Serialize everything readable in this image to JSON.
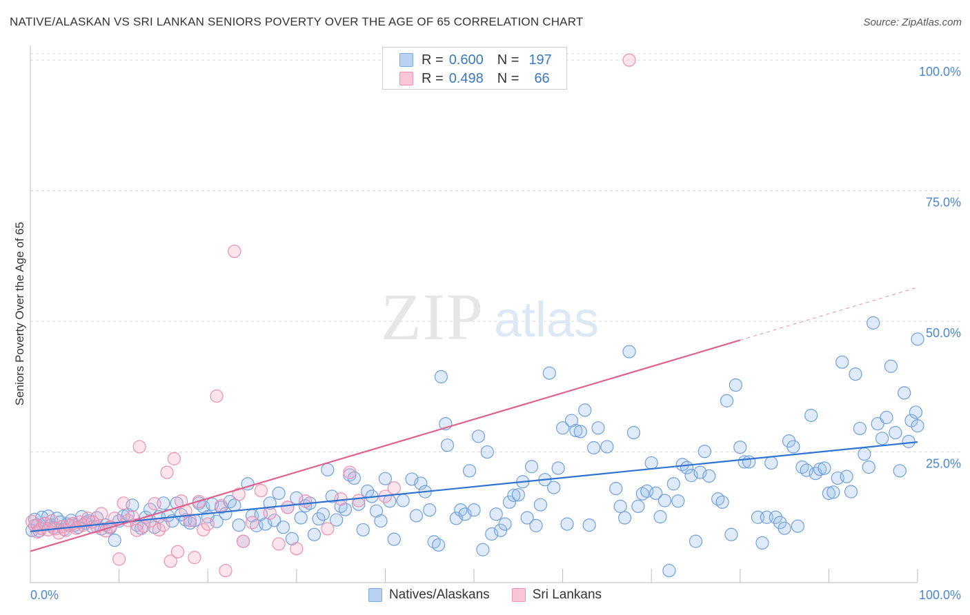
{
  "header": {
    "title": "NATIVE/ALASKAN VS SRI LANKAN SENIORS POVERTY OVER THE AGE OF 65 CORRELATION CHART",
    "source": "Source: ZipAtlas.com"
  },
  "watermark": {
    "zip": "ZIP",
    "atlas": "atlas"
  },
  "legend": {
    "r_label": "R =",
    "n_label": "N =",
    "items": [
      {
        "series": "Natives/Alaskans",
        "r": "0.600",
        "n": "197",
        "color": "#7aaae6",
        "fill": "#b9d2f2"
      },
      {
        "series": "Sri Lankans",
        "r": "0.498",
        "n": "66",
        "color": "#f093b0",
        "fill": "#f8c6d6"
      }
    ]
  },
  "colors": {
    "blue_point_stroke": "#6f9fdc",
    "pink_point_stroke": "#ef8fae",
    "blue_trend": "#2e72d2",
    "pink_trend": "#e0608e",
    "axis_label": "#4a86d0",
    "grid": "#d8d8d8"
  },
  "chart_data": {
    "type": "scatter",
    "title": "NATIVE/ALASKAN VS SRI LANKAN SENIORS POVERTY OVER THE AGE OF 65 CORRELATION CHART",
    "xlabel": "",
    "ylabel": "Seniors Poverty Over the Age of 65",
    "xlim": [
      0,
      100
    ],
    "ylim": [
      0,
      102
    ],
    "x_tick_labels": [
      "0.0%",
      "100.0%"
    ],
    "y_ticks": [
      25,
      50,
      75,
      100
    ],
    "y_tick_labels": [
      "25.0%",
      "50.0%",
      "75.0%",
      "100.0%"
    ],
    "grid": true,
    "legend_position": "top-center",
    "series": [
      {
        "name": "Natives/Alaskans",
        "r": 0.6,
        "n": 197,
        "trend": {
          "x0": 0,
          "y0": 9.8,
          "x1": 100,
          "y1": 26.9
        },
        "points": [
          [
            0.2,
            10.0
          ],
          [
            0.5,
            12.1
          ],
          [
            0.8,
            11.0
          ],
          [
            1.0,
            9.9
          ],
          [
            1.3,
            12.5
          ],
          [
            1.6,
            11.3
          ],
          [
            2.0,
            12.7
          ],
          [
            2.3,
            11.0
          ],
          [
            2.6,
            10.5
          ],
          [
            3.0,
            12.3
          ],
          [
            3.4,
            11.6
          ],
          [
            3.8,
            10.2
          ],
          [
            4.2,
            11.2
          ],
          [
            4.6,
            11.9
          ],
          [
            5.0,
            11.0
          ],
          [
            5.4,
            10.6
          ],
          [
            5.8,
            12.6
          ],
          [
            6.2,
            11.4
          ],
          [
            6.6,
            11.8
          ],
          [
            7.0,
            10.7
          ],
          [
            7.5,
            12.4
          ],
          [
            8.0,
            10.3
          ],
          [
            8.5,
            11.0
          ],
          [
            9.0,
            10.5
          ],
          [
            9.5,
            8.1
          ],
          [
            10.0,
            11.8
          ],
          [
            10.5,
            12.7
          ],
          [
            11.0,
            13.0
          ],
          [
            11.5,
            14.8
          ],
          [
            12.0,
            11.0
          ],
          [
            12.5,
            10.4
          ],
          [
            13.0,
            12.5
          ],
          [
            13.5,
            14.0
          ],
          [
            14.0,
            10.6
          ],
          [
            14.5,
            12.6
          ],
          [
            15.0,
            15.2
          ],
          [
            15.5,
            12.8
          ],
          [
            16.0,
            11.8
          ],
          [
            16.5,
            15.2
          ],
          [
            17.0,
            13.0
          ],
          [
            17.5,
            12.0
          ],
          [
            18.0,
            11.4
          ],
          [
            18.5,
            11.9
          ],
          [
            19.0,
            15.2
          ],
          [
            19.5,
            14.5
          ],
          [
            20.0,
            12.6
          ],
          [
            20.5,
            15.0
          ],
          [
            21.0,
            11.7
          ],
          [
            21.5,
            14.4
          ],
          [
            22.0,
            13.2
          ],
          [
            22.5,
            15.5
          ],
          [
            23.0,
            14.8
          ],
          [
            23.5,
            11.0
          ],
          [
            24.0,
            7.9
          ],
          [
            24.5,
            18.9
          ],
          [
            25.0,
            12.8
          ],
          [
            25.5,
            10.9
          ],
          [
            26.0,
            13.1
          ],
          [
            26.5,
            11.2
          ],
          [
            27.0,
            15.2
          ],
          [
            27.5,
            11.9
          ],
          [
            28.0,
            17.1
          ],
          [
            28.5,
            10.6
          ],
          [
            29.0,
            14.4
          ],
          [
            29.5,
            8.4
          ],
          [
            30.0,
            16.2
          ],
          [
            30.5,
            12.4
          ],
          [
            31.0,
            14.7
          ],
          [
            31.5,
            15.2
          ],
          [
            32.0,
            9.2
          ],
          [
            32.5,
            12.2
          ],
          [
            33.0,
            13.1
          ],
          [
            33.5,
            21.6
          ],
          [
            34.0,
            16.5
          ],
          [
            34.5,
            12.0
          ],
          [
            35.0,
            14.6
          ],
          [
            35.5,
            14.0
          ],
          [
            36.0,
            20.6
          ],
          [
            36.5,
            20.0
          ],
          [
            37.0,
            15.0
          ],
          [
            37.5,
            10.1
          ],
          [
            38.0,
            17.5
          ],
          [
            38.5,
            16.5
          ],
          [
            39.0,
            13.7
          ],
          [
            39.5,
            11.8
          ],
          [
            40.0,
            19.9
          ],
          [
            40.5,
            15.6
          ],
          [
            41.0,
            8.3
          ],
          [
            42.0,
            15.7
          ],
          [
            43.0,
            19.8
          ],
          [
            43.5,
            12.8
          ],
          [
            44.0,
            19.0
          ],
          [
            44.5,
            17.4
          ],
          [
            45.0,
            13.9
          ],
          [
            45.5,
            7.8
          ],
          [
            46.0,
            7.2
          ],
          [
            46.3,
            39.4
          ],
          [
            46.8,
            30.4
          ],
          [
            47.0,
            26.3
          ],
          [
            48.0,
            12.3
          ],
          [
            48.5,
            13.9
          ],
          [
            49.0,
            13.1
          ],
          [
            49.5,
            21.4
          ],
          [
            50.0,
            13.9
          ],
          [
            50.5,
            28.0
          ],
          [
            51.0,
            6.3
          ],
          [
            51.5,
            25.0
          ],
          [
            52.0,
            9.3
          ],
          [
            52.5,
            13.1
          ],
          [
            53.0,
            10.0
          ],
          [
            53.5,
            11.2
          ],
          [
            54.0,
            15.4
          ],
          [
            54.5,
            16.7
          ],
          [
            55.0,
            16.8
          ],
          [
            55.5,
            19.3
          ],
          [
            56.0,
            12.4
          ],
          [
            56.5,
            22.2
          ],
          [
            57.0,
            10.9
          ],
          [
            57.5,
            14.9
          ],
          [
            58.0,
            19.7
          ],
          [
            58.5,
            40.1
          ],
          [
            59.0,
            18.2
          ],
          [
            59.5,
            21.9
          ],
          [
            60.0,
            29.6
          ],
          [
            60.5,
            11.2
          ],
          [
            61.0,
            31.0
          ],
          [
            61.5,
            29.1
          ],
          [
            62.0,
            28.9
          ],
          [
            62.5,
            33.0
          ],
          [
            63.0,
            11.0
          ],
          [
            63.5,
            25.8
          ],
          [
            64.0,
            29.6
          ],
          [
            65.0,
            26.0
          ],
          [
            66.0,
            18.0
          ],
          [
            66.5,
            14.6
          ],
          [
            67.0,
            12.4
          ],
          [
            67.5,
            44.2
          ],
          [
            68.0,
            28.7
          ],
          [
            68.5,
            14.6
          ],
          [
            69.0,
            17.0
          ],
          [
            69.5,
            17.5
          ],
          [
            70.0,
            22.9
          ],
          [
            70.5,
            17.1
          ],
          [
            71.0,
            12.6
          ],
          [
            71.5,
            15.7
          ],
          [
            72.0,
            2.3
          ],
          [
            72.5,
            18.9
          ],
          [
            73.0,
            15.6
          ],
          [
            73.5,
            22.6
          ],
          [
            74.0,
            22.0
          ],
          [
            74.5,
            20.5
          ],
          [
            75.0,
            7.9
          ],
          [
            75.5,
            21.1
          ],
          [
            76.0,
            25.1
          ],
          [
            76.5,
            20.4
          ],
          [
            77.5,
            16.0
          ],
          [
            78.0,
            15.4
          ],
          [
            78.5,
            34.8
          ],
          [
            79.0,
            9.2
          ],
          [
            79.5,
            37.8
          ],
          [
            80.0,
            25.9
          ],
          [
            80.5,
            23.1
          ],
          [
            81.0,
            23.1
          ],
          [
            82.0,
            12.5
          ],
          [
            82.5,
            7.6
          ],
          [
            83.0,
            12.5
          ],
          [
            83.5,
            22.9
          ],
          [
            84.0,
            12.5
          ],
          [
            84.5,
            11.5
          ],
          [
            85.0,
            10.4
          ],
          [
            85.5,
            27.1
          ],
          [
            86.0,
            26.0
          ],
          [
            86.5,
            10.8
          ],
          [
            87.0,
            22.1
          ],
          [
            87.5,
            21.5
          ],
          [
            88.0,
            32.0
          ],
          [
            88.5,
            20.9
          ],
          [
            89.0,
            21.7
          ],
          [
            89.5,
            21.9
          ],
          [
            90.0,
            17.1
          ],
          [
            90.5,
            17.3
          ],
          [
            91.0,
            20.0
          ],
          [
            91.5,
            42.2
          ],
          [
            92.0,
            20.3
          ],
          [
            92.5,
            17.4
          ],
          [
            93.0,
            39.9
          ],
          [
            93.5,
            29.5
          ],
          [
            94.0,
            24.6
          ],
          [
            94.5,
            22.1
          ],
          [
            95.0,
            49.7
          ],
          [
            95.5,
            30.4
          ],
          [
            96.0,
            27.6
          ],
          [
            96.5,
            31.6
          ],
          [
            97.0,
            41.4
          ],
          [
            97.5,
            28.7
          ],
          [
            98.0,
            21.4
          ],
          [
            98.5,
            36.3
          ],
          [
            99.0,
            27.0
          ],
          [
            99.3,
            31.0
          ],
          [
            99.8,
            32.6
          ],
          [
            100.0,
            30.0
          ],
          [
            100.0,
            46.6
          ]
        ]
      },
      {
        "name": "Sri Lankans",
        "r": 0.498,
        "n": 66,
        "trend": {
          "x0": 0,
          "y0": 6.0,
          "x1": 80,
          "y1": 46.4,
          "x_dash_end": 100,
          "y_dash_end": 56.5
        },
        "points": [
          [
            0.2,
            11.7
          ],
          [
            0.5,
            10.9
          ],
          [
            0.8,
            9.7
          ],
          [
            1.2,
            10.4
          ],
          [
            1.6,
            11.3
          ],
          [
            2.0,
            10.1
          ],
          [
            2.4,
            11.8
          ],
          [
            2.8,
            10.3
          ],
          [
            3.2,
            9.5
          ],
          [
            3.6,
            10.7
          ],
          [
            4.0,
            10.0
          ],
          [
            4.4,
            10.9
          ],
          [
            4.8,
            11.3
          ],
          [
            5.2,
            10.4
          ],
          [
            5.6,
            11.6
          ],
          [
            6.0,
            11.0
          ],
          [
            6.5,
            12.3
          ],
          [
            7.0,
            11.6
          ],
          [
            7.5,
            10.7
          ],
          [
            8.0,
            13.2
          ],
          [
            8.5,
            9.9
          ],
          [
            9.0,
            10.7
          ],
          [
            9.5,
            12.3
          ],
          [
            10.0,
            4.5
          ],
          [
            10.5,
            15.2
          ],
          [
            11.0,
            11.9
          ],
          [
            11.5,
            12.6
          ],
          [
            12.0,
            10.0
          ],
          [
            12.3,
            26.0
          ],
          [
            12.8,
            10.8
          ],
          [
            13.5,
            11.8
          ],
          [
            14.0,
            15.1
          ],
          [
            14.5,
            10.1
          ],
          [
            15.0,
            11.0
          ],
          [
            15.4,
            21.1
          ],
          [
            15.8,
            4.1
          ],
          [
            16.2,
            23.7
          ],
          [
            16.6,
            5.9
          ],
          [
            17.0,
            15.6
          ],
          [
            17.5,
            13.7
          ],
          [
            18.0,
            11.9
          ],
          [
            18.5,
            4.8
          ],
          [
            19.0,
            15.5
          ],
          [
            19.5,
            10.1
          ],
          [
            20.0,
            11.2
          ],
          [
            21.0,
            35.7
          ],
          [
            21.5,
            14.7
          ],
          [
            22.0,
            2.3
          ],
          [
            23.0,
            63.4
          ],
          [
            23.5,
            16.9
          ],
          [
            24.0,
            7.9
          ],
          [
            25.0,
            11.5
          ],
          [
            26.0,
            17.6
          ],
          [
            27.0,
            13.3
          ],
          [
            28.0,
            7.4
          ],
          [
            29.0,
            14.4
          ],
          [
            30.0,
            6.5
          ],
          [
            31.0,
            15.6
          ],
          [
            33.5,
            10.3
          ],
          [
            35.0,
            16.0
          ],
          [
            36.0,
            21.1
          ],
          [
            37.0,
            15.7
          ],
          [
            40.0,
            16.5
          ],
          [
            41.0,
            18.1
          ],
          [
            67.5,
            100.0
          ]
        ]
      }
    ]
  }
}
